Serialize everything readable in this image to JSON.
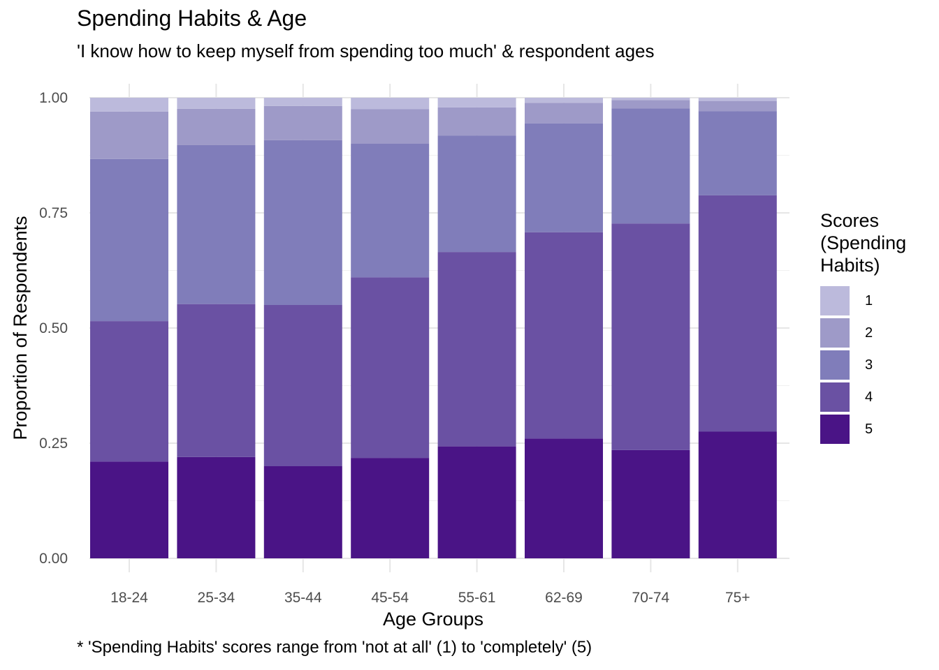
{
  "title": "Spending Habits & Age",
  "subtitle": "'I know how to keep myself from spending too much' & respondent ages",
  "caption": "* 'Spending Habits' scores range from 'not at all' (1) to 'completely' (5)",
  "legend": {
    "title": "Scores (Spending Habits)",
    "items": [
      {
        "label": "1",
        "color": "#BCBADC"
      },
      {
        "label": "2",
        "color": "#9E9AC8"
      },
      {
        "label": "3",
        "color": "#807DBA"
      },
      {
        "label": "4",
        "color": "#6A51A3"
      },
      {
        "label": "5",
        "color": "#4A1486"
      }
    ]
  },
  "chart_data": {
    "type": "bar",
    "stacked": true,
    "title": "Spending Habits & Age",
    "subtitle": "'I know how to keep myself from spending too much' & respondent ages",
    "xlabel": "Age Groups",
    "ylabel": "Proportion of Respondents",
    "ylim": [
      0,
      1
    ],
    "yticks": [
      "0.00",
      "0.25",
      "0.50",
      "0.75",
      "1.00"
    ],
    "ytick_values": [
      0,
      0.25,
      0.5,
      0.75,
      1.0
    ],
    "grid": true,
    "legend_position": "right",
    "categories": [
      "18-24",
      "25-34",
      "35-44",
      "45-54",
      "55-61",
      "62-69",
      "70-74",
      "75+"
    ],
    "series": [
      {
        "name": "5",
        "color": "#4A1486",
        "values": [
          0.21,
          0.22,
          0.2,
          0.218,
          0.243,
          0.26,
          0.235,
          0.275
        ]
      },
      {
        "name": "4",
        "color": "#6A51A3",
        "values": [
          0.305,
          0.332,
          0.35,
          0.392,
          0.422,
          0.448,
          0.492,
          0.513
        ]
      },
      {
        "name": "3",
        "color": "#807DBA",
        "values": [
          0.352,
          0.345,
          0.358,
          0.29,
          0.253,
          0.236,
          0.25,
          0.183
        ]
      },
      {
        "name": "2",
        "color": "#9E9AC8",
        "values": [
          0.103,
          0.079,
          0.074,
          0.075,
          0.061,
          0.045,
          0.018,
          0.022
        ]
      },
      {
        "name": "1",
        "color": "#BCBADC",
        "values": [
          0.03,
          0.024,
          0.018,
          0.025,
          0.021,
          0.011,
          0.005,
          0.007
        ]
      }
    ]
  }
}
